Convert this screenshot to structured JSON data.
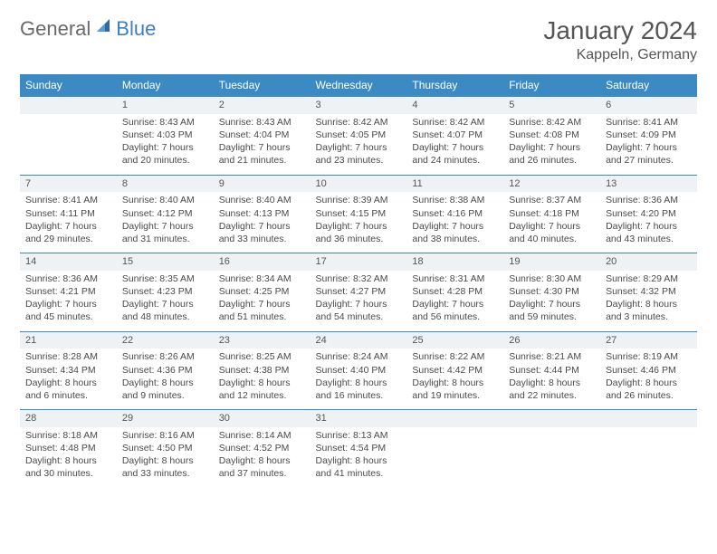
{
  "brand": {
    "part1": "General",
    "part2": "Blue"
  },
  "title": "January 2024",
  "location": "Kappeln, Germany",
  "colors": {
    "header_bg": "#3b8ac4",
    "header_text": "#ffffff",
    "date_bg": "#eef2f5",
    "border": "#3b8ac4",
    "body_text": "#4a4a4a",
    "brand_gray": "#6a6a6a",
    "brand_blue": "#3b7fc4"
  },
  "day_names": [
    "Sunday",
    "Monday",
    "Tuesday",
    "Wednesday",
    "Thursday",
    "Friday",
    "Saturday"
  ],
  "weeks": [
    [
      null,
      {
        "d": "1",
        "sr": "Sunrise: 8:43 AM",
        "ss": "Sunset: 4:03 PM",
        "dl1": "Daylight: 7 hours",
        "dl2": "and 20 minutes."
      },
      {
        "d": "2",
        "sr": "Sunrise: 8:43 AM",
        "ss": "Sunset: 4:04 PM",
        "dl1": "Daylight: 7 hours",
        "dl2": "and 21 minutes."
      },
      {
        "d": "3",
        "sr": "Sunrise: 8:42 AM",
        "ss": "Sunset: 4:05 PM",
        "dl1": "Daylight: 7 hours",
        "dl2": "and 23 minutes."
      },
      {
        "d": "4",
        "sr": "Sunrise: 8:42 AM",
        "ss": "Sunset: 4:07 PM",
        "dl1": "Daylight: 7 hours",
        "dl2": "and 24 minutes."
      },
      {
        "d": "5",
        "sr": "Sunrise: 8:42 AM",
        "ss": "Sunset: 4:08 PM",
        "dl1": "Daylight: 7 hours",
        "dl2": "and 26 minutes."
      },
      {
        "d": "6",
        "sr": "Sunrise: 8:41 AM",
        "ss": "Sunset: 4:09 PM",
        "dl1": "Daylight: 7 hours",
        "dl2": "and 27 minutes."
      }
    ],
    [
      {
        "d": "7",
        "sr": "Sunrise: 8:41 AM",
        "ss": "Sunset: 4:11 PM",
        "dl1": "Daylight: 7 hours",
        "dl2": "and 29 minutes."
      },
      {
        "d": "8",
        "sr": "Sunrise: 8:40 AM",
        "ss": "Sunset: 4:12 PM",
        "dl1": "Daylight: 7 hours",
        "dl2": "and 31 minutes."
      },
      {
        "d": "9",
        "sr": "Sunrise: 8:40 AM",
        "ss": "Sunset: 4:13 PM",
        "dl1": "Daylight: 7 hours",
        "dl2": "and 33 minutes."
      },
      {
        "d": "10",
        "sr": "Sunrise: 8:39 AM",
        "ss": "Sunset: 4:15 PM",
        "dl1": "Daylight: 7 hours",
        "dl2": "and 36 minutes."
      },
      {
        "d": "11",
        "sr": "Sunrise: 8:38 AM",
        "ss": "Sunset: 4:16 PM",
        "dl1": "Daylight: 7 hours",
        "dl2": "and 38 minutes."
      },
      {
        "d": "12",
        "sr": "Sunrise: 8:37 AM",
        "ss": "Sunset: 4:18 PM",
        "dl1": "Daylight: 7 hours",
        "dl2": "and 40 minutes."
      },
      {
        "d": "13",
        "sr": "Sunrise: 8:36 AM",
        "ss": "Sunset: 4:20 PM",
        "dl1": "Daylight: 7 hours",
        "dl2": "and 43 minutes."
      }
    ],
    [
      {
        "d": "14",
        "sr": "Sunrise: 8:36 AM",
        "ss": "Sunset: 4:21 PM",
        "dl1": "Daylight: 7 hours",
        "dl2": "and 45 minutes."
      },
      {
        "d": "15",
        "sr": "Sunrise: 8:35 AM",
        "ss": "Sunset: 4:23 PM",
        "dl1": "Daylight: 7 hours",
        "dl2": "and 48 minutes."
      },
      {
        "d": "16",
        "sr": "Sunrise: 8:34 AM",
        "ss": "Sunset: 4:25 PM",
        "dl1": "Daylight: 7 hours",
        "dl2": "and 51 minutes."
      },
      {
        "d": "17",
        "sr": "Sunrise: 8:32 AM",
        "ss": "Sunset: 4:27 PM",
        "dl1": "Daylight: 7 hours",
        "dl2": "and 54 minutes."
      },
      {
        "d": "18",
        "sr": "Sunrise: 8:31 AM",
        "ss": "Sunset: 4:28 PM",
        "dl1": "Daylight: 7 hours",
        "dl2": "and 56 minutes."
      },
      {
        "d": "19",
        "sr": "Sunrise: 8:30 AM",
        "ss": "Sunset: 4:30 PM",
        "dl1": "Daylight: 7 hours",
        "dl2": "and 59 minutes."
      },
      {
        "d": "20",
        "sr": "Sunrise: 8:29 AM",
        "ss": "Sunset: 4:32 PM",
        "dl1": "Daylight: 8 hours",
        "dl2": "and 3 minutes."
      }
    ],
    [
      {
        "d": "21",
        "sr": "Sunrise: 8:28 AM",
        "ss": "Sunset: 4:34 PM",
        "dl1": "Daylight: 8 hours",
        "dl2": "and 6 minutes."
      },
      {
        "d": "22",
        "sr": "Sunrise: 8:26 AM",
        "ss": "Sunset: 4:36 PM",
        "dl1": "Daylight: 8 hours",
        "dl2": "and 9 minutes."
      },
      {
        "d": "23",
        "sr": "Sunrise: 8:25 AM",
        "ss": "Sunset: 4:38 PM",
        "dl1": "Daylight: 8 hours",
        "dl2": "and 12 minutes."
      },
      {
        "d": "24",
        "sr": "Sunrise: 8:24 AM",
        "ss": "Sunset: 4:40 PM",
        "dl1": "Daylight: 8 hours",
        "dl2": "and 16 minutes."
      },
      {
        "d": "25",
        "sr": "Sunrise: 8:22 AM",
        "ss": "Sunset: 4:42 PM",
        "dl1": "Daylight: 8 hours",
        "dl2": "and 19 minutes."
      },
      {
        "d": "26",
        "sr": "Sunrise: 8:21 AM",
        "ss": "Sunset: 4:44 PM",
        "dl1": "Daylight: 8 hours",
        "dl2": "and 22 minutes."
      },
      {
        "d": "27",
        "sr": "Sunrise: 8:19 AM",
        "ss": "Sunset: 4:46 PM",
        "dl1": "Daylight: 8 hours",
        "dl2": "and 26 minutes."
      }
    ],
    [
      {
        "d": "28",
        "sr": "Sunrise: 8:18 AM",
        "ss": "Sunset: 4:48 PM",
        "dl1": "Daylight: 8 hours",
        "dl2": "and 30 minutes."
      },
      {
        "d": "29",
        "sr": "Sunrise: 8:16 AM",
        "ss": "Sunset: 4:50 PM",
        "dl1": "Daylight: 8 hours",
        "dl2": "and 33 minutes."
      },
      {
        "d": "30",
        "sr": "Sunrise: 8:14 AM",
        "ss": "Sunset: 4:52 PM",
        "dl1": "Daylight: 8 hours",
        "dl2": "and 37 minutes."
      },
      {
        "d": "31",
        "sr": "Sunrise: 8:13 AM",
        "ss": "Sunset: 4:54 PM",
        "dl1": "Daylight: 8 hours",
        "dl2": "and 41 minutes."
      },
      null,
      null,
      null
    ]
  ]
}
